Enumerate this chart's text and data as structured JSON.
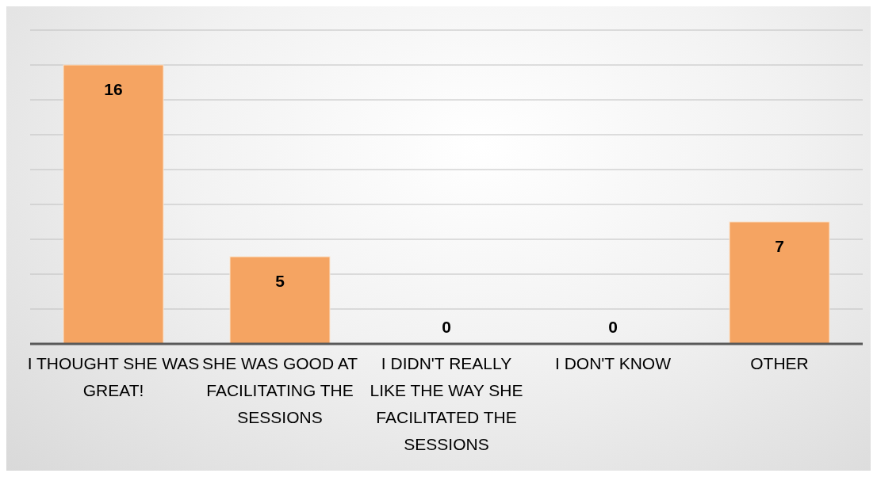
{
  "chart_data": {
    "type": "bar",
    "categories": [
      "I THOUGHT SHE WAS GREAT!",
      "SHE WAS GOOD AT FACILITATING THE SESSIONS",
      "I DIDN'T REALLY LIKE THE WAY SHE FACILITATED THE SESSIONS",
      "I DON'T KNOW",
      "OTHER"
    ],
    "values": [
      16,
      5,
      0,
      0,
      7
    ],
    "color": "#f5a462",
    "grid": "y",
    "tick_labels": "x",
    "data_labels": true,
    "legend": false
  }
}
